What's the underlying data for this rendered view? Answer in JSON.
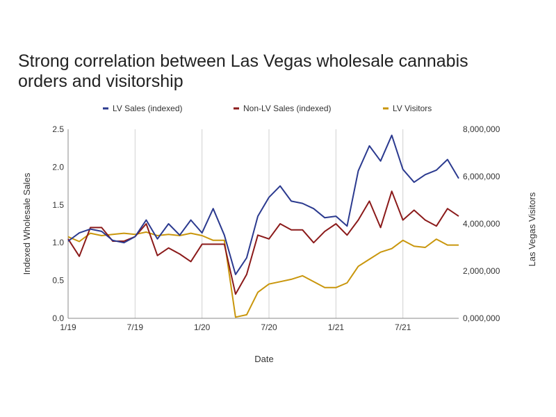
{
  "chart_data": {
    "type": "line",
    "title": "Strong correlation between Las Vegas wholesale cannabis orders and visitorship",
    "xlabel": "Date",
    "ylabel": "Indexed Wholesale Sales",
    "y2label": "Las Vegas Visitors",
    "x": [
      "2019-01",
      "2019-02",
      "2019-03",
      "2019-04",
      "2019-05",
      "2019-06",
      "2019-07",
      "2019-08",
      "2019-09",
      "2019-10",
      "2019-11",
      "2019-12",
      "2020-01",
      "2020-02",
      "2020-03",
      "2020-04",
      "2020-05",
      "2020-06",
      "2020-07",
      "2020-08",
      "2020-09",
      "2020-10",
      "2020-11",
      "2020-12",
      "2021-01",
      "2021-02",
      "2021-03",
      "2021-04",
      "2021-05",
      "2021-06",
      "2021-07",
      "2021-08",
      "2021-09",
      "2021-10",
      "2021-11",
      "2021-12"
    ],
    "x_ticks": [
      "1/19",
      "7/19",
      "1/20",
      "7/20",
      "1/21",
      "7/21"
    ],
    "ylim": [
      0,
      2.5
    ],
    "y_ticks": [
      "0.0",
      "0.5",
      "1.0",
      "1.5",
      "2.0",
      "2.5"
    ],
    "y2lim": [
      0,
      8000000
    ],
    "y2_ticks": [
      "0,000,000",
      "2,000,000",
      "4,000,000",
      "6,000,000",
      "8,000,000"
    ],
    "legend_position": "top",
    "grid": "vertical",
    "series": [
      {
        "name": "LV Sales (indexed)",
        "color": "#2b3a8f",
        "axis": "left",
        "values": [
          1.02,
          1.13,
          1.18,
          1.15,
          1.03,
          1.0,
          1.08,
          1.3,
          1.05,
          1.25,
          1.1,
          1.3,
          1.13,
          1.45,
          1.1,
          0.58,
          0.8,
          1.35,
          1.6,
          1.75,
          1.55,
          1.52,
          1.45,
          1.33,
          1.35,
          1.22,
          1.95,
          2.28,
          2.08,
          2.42,
          1.97,
          1.8,
          1.9,
          1.96,
          2.1,
          1.85
        ]
      },
      {
        "name": "Non-LV Sales (indexed)",
        "color": "#8b1a1a",
        "axis": "left",
        "values": [
          1.05,
          0.82,
          1.2,
          1.2,
          1.02,
          1.02,
          1.08,
          1.25,
          0.83,
          0.93,
          0.85,
          0.75,
          0.98,
          0.98,
          0.98,
          0.32,
          0.58,
          1.1,
          1.05,
          1.25,
          1.17,
          1.17,
          1.0,
          1.15,
          1.25,
          1.1,
          1.3,
          1.55,
          1.2,
          1.68,
          1.3,
          1.43,
          1.3,
          1.22,
          1.45,
          1.35
        ]
      },
      {
        "name": "LV Visitors",
        "color": "#c9960c",
        "axis": "right",
        "values": [
          3450000,
          3250000,
          3600000,
          3500000,
          3550000,
          3600000,
          3550000,
          3650000,
          3500000,
          3550000,
          3500000,
          3600000,
          3500000,
          3300000,
          3300000,
          50000,
          150000,
          1100000,
          1450000,
          1550000,
          1650000,
          1800000,
          1550000,
          1300000,
          1300000,
          1500000,
          2200000,
          2500000,
          2800000,
          2950000,
          3300000,
          3050000,
          3000000,
          3350000,
          3100000,
          3100000
        ]
      }
    ]
  }
}
